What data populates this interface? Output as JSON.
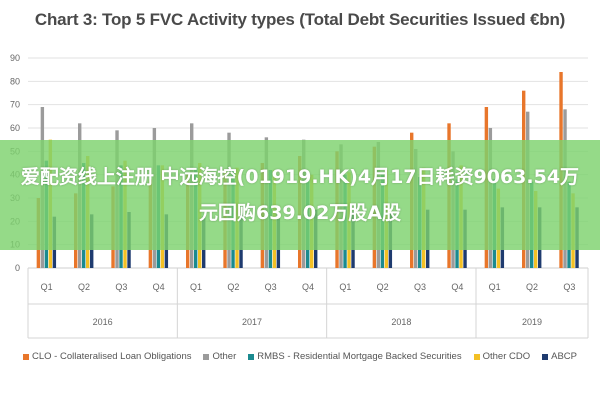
{
  "chart_data": {
    "type": "bar",
    "title": "Chart 3: Top 5 FVC Activity types (Total Debt Securities Issued €bn)",
    "xlabel": "",
    "ylabel": "",
    "ylim": [
      0,
      90
    ],
    "yticks": [
      0,
      10,
      20,
      30,
      40,
      50,
      60,
      70,
      80,
      90
    ],
    "grid": true,
    "legend_position": "bottom",
    "categories": [
      "Q1",
      "Q2",
      "Q3",
      "Q4",
      "Q1",
      "Q2",
      "Q3",
      "Q4",
      "Q1",
      "Q2",
      "Q3",
      "Q4",
      "Q1",
      "Q2",
      "Q3"
    ],
    "groups": [
      {
        "label": "2016",
        "count": 4
      },
      {
        "label": "2017",
        "count": 4
      },
      {
        "label": "2018",
        "count": 4
      },
      {
        "label": "2019",
        "count": 3
      }
    ],
    "series": [
      {
        "name": "CLO - Collateralised Loan Obligations",
        "color": "#e8762b",
        "values": [
          30,
          32,
          35,
          38,
          40,
          42,
          45,
          48,
          50,
          52,
          58,
          62,
          69,
          76,
          84
        ]
      },
      {
        "name": "Other",
        "color": "#9b9b9b",
        "values": [
          69,
          62,
          59,
          60,
          62,
          58,
          56,
          55,
          53,
          54,
          51,
          50,
          60,
          67,
          68
        ]
      },
      {
        "name": "RMBS - Residential Mortgage Backed Securities",
        "color": "#1b8a8f",
        "values": [
          46,
          45,
          44,
          44,
          43,
          42,
          42,
          41,
          40,
          40,
          39,
          38,
          38,
          37,
          37
        ]
      },
      {
        "name": "Other CDO",
        "color": "#f3c025",
        "values": [
          55,
          48,
          46,
          44,
          45,
          43,
          42,
          40,
          41,
          42,
          43,
          44,
          34,
          33,
          32
        ]
      },
      {
        "name": "ABCP",
        "color": "#1f3b6f",
        "values": [
          22,
          23,
          24,
          23,
          22,
          23,
          24,
          25,
          24,
          24,
          25,
          25,
          26,
          26,
          26
        ]
      }
    ]
  },
  "overlay": {
    "headline": "爱配资线上注册 中远海控(01919.HK)4月17日耗资9063.54万元回购639.02万股A股"
  }
}
